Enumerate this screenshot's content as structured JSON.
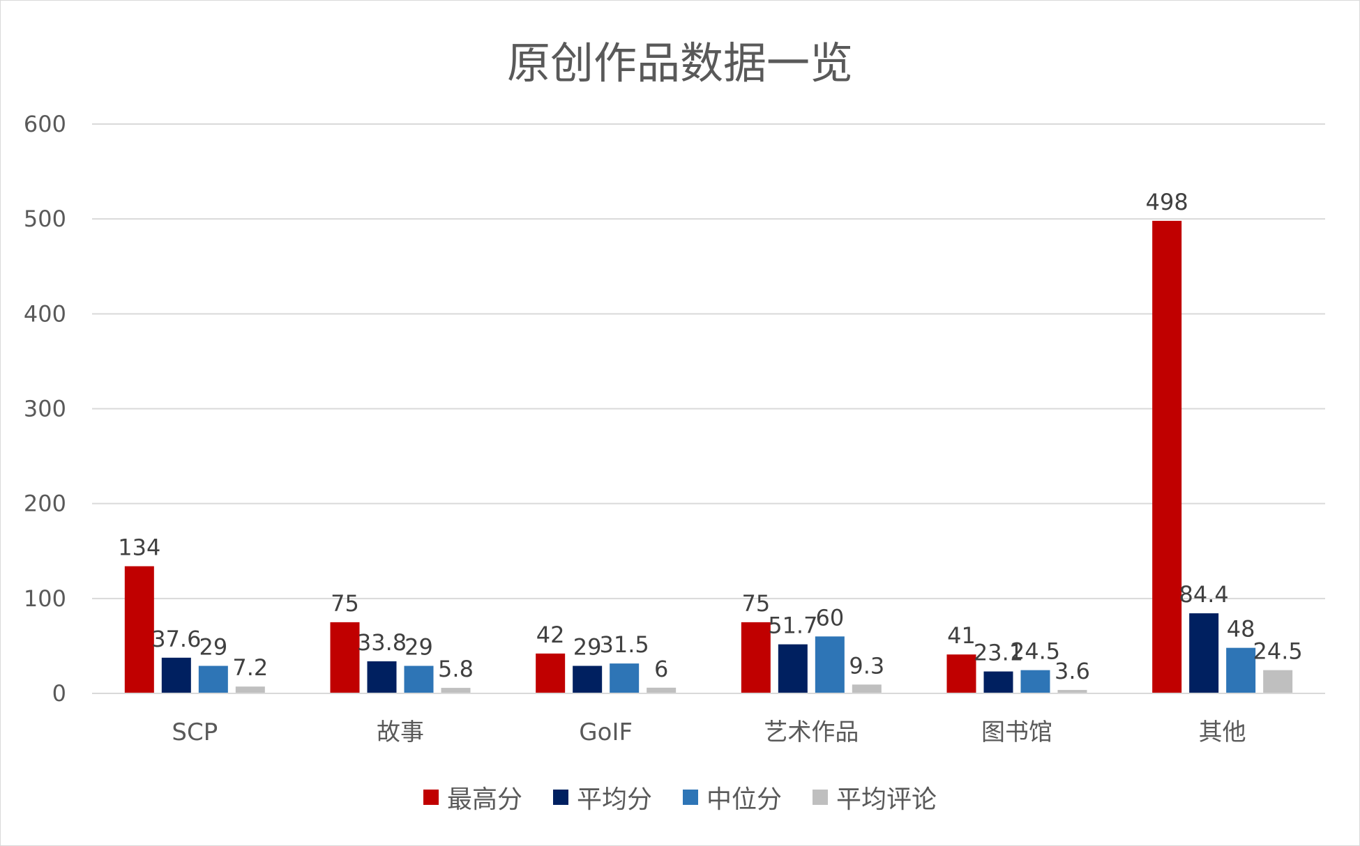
{
  "chart_data": {
    "type": "bar",
    "title": "原创作品数据一览",
    "categories": [
      "SCP",
      "故事",
      "GoIF",
      "艺术作品",
      "图书馆",
      "其他"
    ],
    "series": [
      {
        "name": "最高分",
        "color": "#c00000",
        "values": [
          134,
          75,
          42,
          75,
          41,
          498
        ],
        "labels": [
          "134",
          "75",
          "42",
          "75",
          "41",
          "498"
        ]
      },
      {
        "name": "平均分",
        "color": "#002060",
        "values": [
          37.6,
          33.8,
          29,
          51.7,
          23.1,
          84.4
        ],
        "labels": [
          "37.6",
          "33.8",
          "29",
          "51.7",
          "23.1",
          "84.4"
        ]
      },
      {
        "name": "中位分",
        "color": "#2e75b6",
        "values": [
          29,
          29,
          31.5,
          60,
          24.5,
          48
        ],
        "labels": [
          "29",
          "29",
          "31.5",
          "60",
          "24.5",
          "48"
        ]
      },
      {
        "name": "平均评论",
        "color": "#bfbfbf",
        "values": [
          7.2,
          5.8,
          6,
          9.3,
          3.6,
          24.5
        ],
        "labels": [
          "7.2",
          "5.8",
          "6",
          "9.3",
          "3.6",
          "24.5"
        ]
      }
    ],
    "xlabel": "",
    "ylabel": "",
    "ylim": [
      0,
      600
    ],
    "yticks": [
      0,
      100,
      200,
      300,
      400,
      500,
      600
    ],
    "ytick_labels": [
      "0",
      "100",
      "200",
      "300",
      "400",
      "500",
      "600"
    ],
    "grid": true,
    "legend_position": "bottom"
  }
}
